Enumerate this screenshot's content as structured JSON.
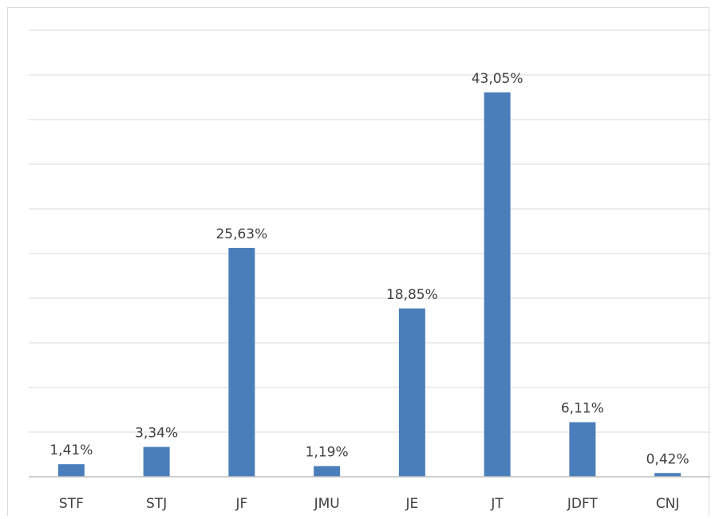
{
  "chart_data": {
    "type": "bar",
    "title": "",
    "xlabel": "",
    "ylabel": "",
    "categories": [
      "STF",
      "STJ",
      "JF",
      "JMU",
      "JE",
      "JT",
      "JDFT",
      "CNJ"
    ],
    "values": [
      1.41,
      3.34,
      25.63,
      1.19,
      18.85,
      43.05,
      6.11,
      0.42
    ],
    "data_labels": [
      "1,41%",
      "3,34%",
      "25,63%",
      "1,19%",
      "18,85%",
      "43,05%",
      "6,11%",
      "0,42%"
    ],
    "ylim": [
      0,
      50
    ],
    "grid": true,
    "grid_step": 5,
    "y_axis_visible": false,
    "legend": "none",
    "colors": {
      "bar": "#4a7ebb",
      "grid": "#d9d9d9",
      "axis": "#bfbfbf",
      "label": "#404040"
    }
  }
}
